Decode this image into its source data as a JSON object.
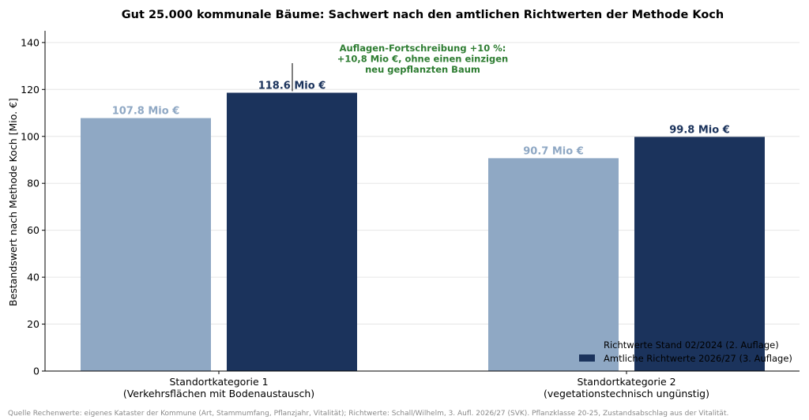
{
  "chart_data": {
    "type": "bar",
    "title": "Gut 25.000 kommunale Bäume: Sachwert nach den amtlichen Richtwerten der Methode Koch",
    "ylabel": "Bestandswert nach Methode Koch  [Mio. €]",
    "xlabel": "",
    "ylim": [
      0,
      145
    ],
    "yticks": [
      "0",
      "20",
      "40",
      "60",
      "80",
      "100",
      "120",
      "140"
    ],
    "grid": "horizontal",
    "legend_position": "bottom-right",
    "categories": [
      [
        "Standortkategorie 1",
        "(Verkehrsflächen mit Bodenaustausch)"
      ],
      [
        "Standortkategorie 2",
        "(vegetationstechnisch ungünstig)"
      ]
    ],
    "series": [
      {
        "name": "Richtwerte Stand 02/2024 (2. Auflage)",
        "color": "#8fa8c4",
        "values": [
          107.8,
          90.7
        ],
        "labels": [
          "107.8 Mio €",
          "90.7 Mio €"
        ]
      },
      {
        "name": "Amtliche Richtwerte 2026/27 (3. Auflage)",
        "color": "#1b335c",
        "values": [
          118.6,
          99.8
        ],
        "labels": [
          "118.6 Mio €",
          "99.8 Mio €"
        ]
      }
    ],
    "annotation": {
      "lines": [
        "Auflagen-Fortschreibung +10 %:",
        "+10,8 Mio €, ohne einen einzigen",
        "neu gepflanzten Baum"
      ],
      "color": "#2e7d32"
    },
    "source": "Quelle Rechenwerte: eigenes Kataster der Kommune (Art, Stammumfang, Pflanzjahr, Vitalität); Richtwerte: Schall/Wilhelm, 3. Aufl. 2026/27 (SVK). Pflanzklasse 20-25, Zustandsabschlag aus der Vitalität."
  }
}
